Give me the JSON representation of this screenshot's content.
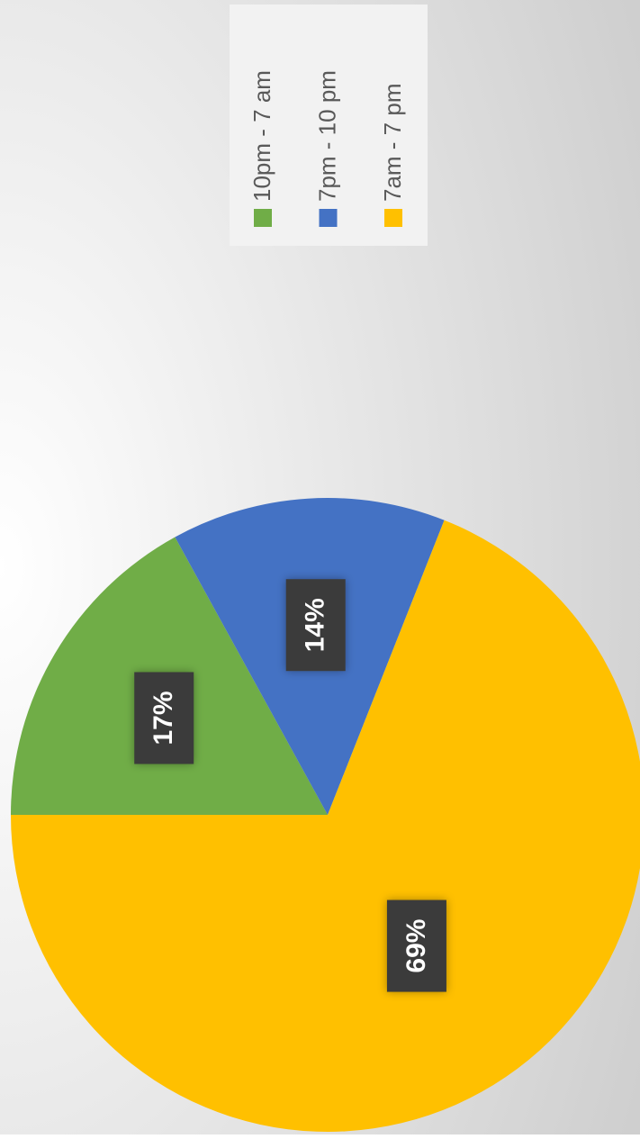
{
  "chart_data": {
    "type": "pie",
    "categories": [
      "10pm - 7 am",
      "7pm - 10 pm",
      "7am - 7 pm"
    ],
    "values": [
      17,
      14,
      69
    ],
    "value_labels": [
      "17%",
      "14%",
      "69%"
    ],
    "colors": [
      "#70ad47",
      "#4472c4",
      "#ffc000"
    ]
  }
}
